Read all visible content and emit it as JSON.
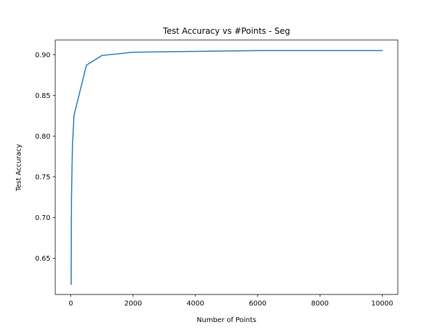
{
  "chart_data": {
    "type": "line",
    "title": "Test Accuracy vs #Points - Seg",
    "xlabel": "Number of Points",
    "ylabel": "Test Accuracy",
    "xlim": [
      -500,
      10500
    ],
    "ylim": [
      0.6055,
      0.918
    ],
    "xticks": [
      0,
      2000,
      4000,
      6000,
      8000,
      10000
    ],
    "xtick_labels": [
      "0",
      "2000",
      "4000",
      "6000",
      "8000",
      "10000"
    ],
    "yticks": [
      0.65,
      0.7,
      0.75,
      0.8,
      0.85,
      0.9
    ],
    "ytick_labels": [
      "0.65",
      "0.70",
      "0.75",
      "0.80",
      "0.85",
      "0.90"
    ],
    "grid": false,
    "series": [
      {
        "color": "#1f77b4",
        "x": [
          10,
          20,
          50,
          100,
          500,
          1000,
          2000,
          4000,
          6000,
          10000
        ],
        "y": [
          0.618,
          0.722,
          0.785,
          0.825,
          0.887,
          0.899,
          0.903,
          0.904,
          0.905,
          0.905
        ]
      }
    ]
  }
}
